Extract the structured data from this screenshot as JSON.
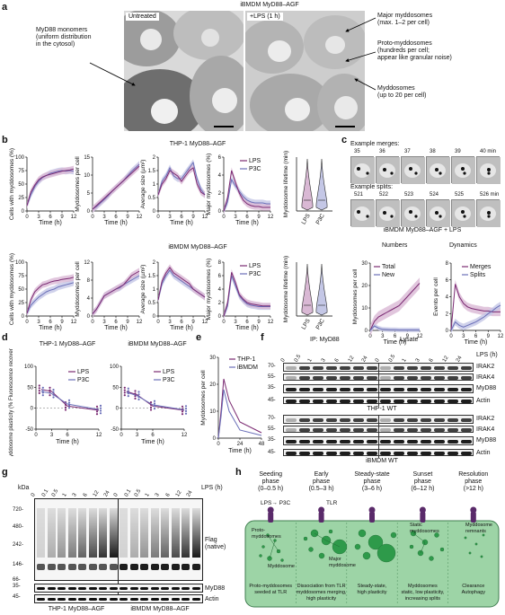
{
  "panel_a": {
    "label": "a",
    "title": "iBMDM MyD88–AGF",
    "untreated": "Untreated",
    "lps": "+LPS (1 h)",
    "ann_left": [
      "MyD88 monomers",
      "(uniform distribution",
      "in the cytosol)"
    ],
    "ann_major": [
      "Major myddosomes",
      "(max. 1–2 per cell)"
    ],
    "ann_proto": [
      "Proto-myddosomes",
      "(hundreds per cell;",
      "appear like granular noise)"
    ],
    "ann_myd": [
      "Myddosomes",
      "(up to 20 per cell)"
    ]
  },
  "panel_b": {
    "label": "b",
    "title_top": "THP-1 MyD88–AGF",
    "title_bottom": "iBMDM MyD88–AGF",
    "ylabels": [
      "Cells with myddosomes (%)",
      "Myddosomes per cell",
      "Average size (µm²)",
      "Major myddosomes (%)",
      "Myddosome lifetime (min)"
    ],
    "xlabel": "Time (h)",
    "legend": [
      "LPS",
      "P3C"
    ],
    "xticks": [
      "0",
      "3",
      "6",
      "9",
      "12"
    ],
    "violin_x": [
      "LPS",
      "P3C"
    ]
  },
  "panel_c": {
    "label": "c",
    "merges_title": "Example merges:",
    "merge_times": [
      "35",
      "36",
      "37",
      "38",
      "39",
      "40 min"
    ],
    "splits_title": "Example splits:",
    "split_times": [
      "521",
      "522",
      "523",
      "524",
      "525",
      "526 min"
    ],
    "caption": "iBMDM MyD88–AGF + LPS",
    "numbers_title": "Numbers",
    "dynamics_title": "Dynamics",
    "numbers_ylabel": "Myddosomes per cell",
    "dynamics_ylabel": "Events per cell",
    "numbers_legend": [
      "Total",
      "New"
    ],
    "dynamics_legend": [
      "Merges",
      "Splits"
    ],
    "xlabel": "Time (h)"
  },
  "panel_d": {
    "label": "d",
    "title_left": "THP-1 MyD88–AGF",
    "title_right": "iBMDM MyD88–AGF",
    "ylabel": "Myddosome plasticity (% Fluorescence recovery/min)",
    "legend": [
      "LPS",
      "P3C"
    ],
    "xlabel": "Time (h)"
  },
  "panel_e": {
    "label": "e",
    "legend": [
      "THP-1",
      "iBMDM"
    ],
    "ylabel": "Myddosomes per cell",
    "xlabel": "Time (h)"
  },
  "panel_f": {
    "label": "f",
    "ip": "IP: MyD88",
    "lysate": "Lysate",
    "time_label": "LPS (h)",
    "times": [
      "0",
      "0.5",
      "1",
      "3",
      "6",
      "12",
      "24",
      "0",
      "0.5",
      "1",
      "3",
      "6",
      "12",
      "24"
    ],
    "proteins": [
      "IRAK2",
      "IRAK4",
      "MyD88",
      "Actin"
    ],
    "kda": [
      "70-",
      "55-",
      "35-",
      "45-"
    ],
    "cell_top": "THP-1 WT",
    "cell_bottom": "iBMDM WT"
  },
  "panel_g": {
    "label": "g",
    "kda_title": "kDa",
    "kda": [
      "720-",
      "480-",
      "242-",
      "146-",
      "66-",
      "35-",
      "45-"
    ],
    "times": [
      "0",
      "0.1",
      "0.5",
      "1",
      "3",
      "6",
      "12",
      "24",
      "0",
      "0.1",
      "0.5",
      "1",
      "3",
      "6",
      "12",
      "24"
    ],
    "time_label": "LPS (h)",
    "flag": [
      "Flag",
      "(native)"
    ],
    "myd88": "MyD88",
    "actin": "Actin",
    "cell_left": "THP-1 MyD88–AGF",
    "cell_right": "iBMDM MyD88–AGF"
  },
  "panel_h": {
    "label": "h",
    "phases": [
      {
        "name": [
          "Seeding",
          "phase",
          "(0–0.5 h)"
        ],
        "desc": [
          "Proto-myddosomes",
          "seeded at TLR"
        ]
      },
      {
        "name": [
          "Early",
          "phase",
          "(0.5–3 h)"
        ],
        "desc": [
          "Dissociation from TLR",
          "myddosomes merging,",
          "high plasticity"
        ]
      },
      {
        "name": [
          "Steady-state",
          "phase",
          "(3–6 h)"
        ],
        "desc": [
          "Steady-state,",
          "high plasticity"
        ]
      },
      {
        "name": [
          "Sunset",
          "phase",
          "(6–12 h)"
        ],
        "desc": [
          "Myddosomes",
          "static, low plasticity,",
          "increasing splits"
        ]
      },
      {
        "name": [
          "Resolution",
          "phase",
          "(>12 h)"
        ],
        "desc": [
          "Clearance",
          "Autophagy"
        ]
      }
    ],
    "lps_p3c": "LPS→ P3C",
    "tlr": "TLR",
    "proto": [
      "Proto-",
      "myddosomes"
    ],
    "myddosome": "Myddosome",
    "major": [
      "Major",
      "myddosome"
    ],
    "static": [
      "Static",
      "myddosomes"
    ],
    "remnants": [
      "Myddosome",
      "remnants"
    ]
  },
  "colors": {
    "lps": "#7a2a72",
    "p3c": "#6a6fb8",
    "lps_band": "#d9b8d4",
    "p3c_band": "#c4c7e6",
    "cell_green": "#9dd4a6",
    "dot_green": "#2e9a4a",
    "receptor": "#5a2a6a"
  }
}
